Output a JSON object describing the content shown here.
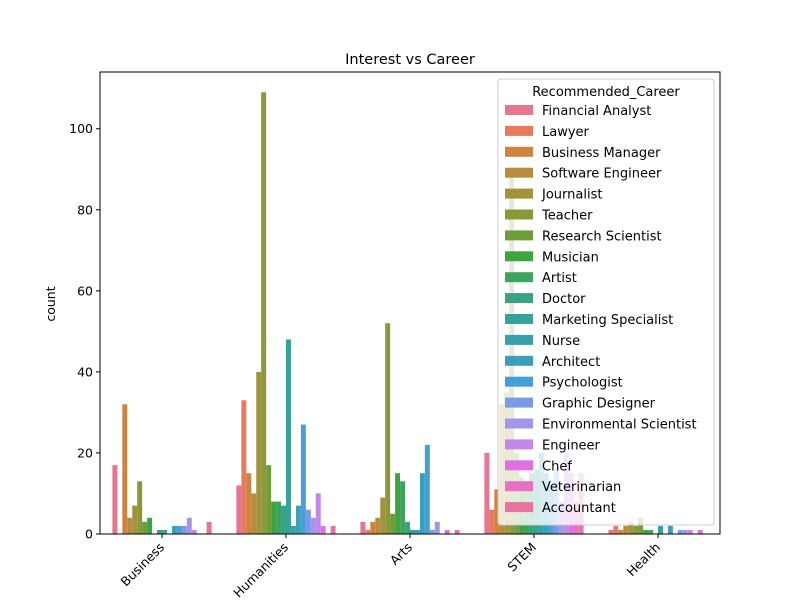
{
  "chart_data": {
    "type": "bar",
    "title": "Interest vs Career",
    "xlabel": "",
    "ylabel": "count",
    "ylim": [
      0,
      114
    ],
    "yticks": [
      0,
      20,
      40,
      60,
      80,
      100
    ],
    "categories": [
      "Business",
      "Humanities",
      "Arts",
      "STEM",
      "Health"
    ],
    "legend_title": "Recommended_Career",
    "legend_position": "top-right",
    "series": [
      {
        "name": "Financial Analyst",
        "color": "#e7758f",
        "values": [
          17,
          12,
          3,
          20,
          1
        ]
      },
      {
        "name": "Lawyer",
        "color": "#e97a5e",
        "values": [
          0,
          33,
          1,
          6,
          2
        ]
      },
      {
        "name": "Business Manager",
        "color": "#cc843f",
        "values": [
          32,
          15,
          3,
          11,
          1
        ]
      },
      {
        "name": "Software Engineer",
        "color": "#b88c40",
        "values": [
          4,
          10,
          4,
          32,
          2
        ]
      },
      {
        "name": "Journalist",
        "color": "#a1923c",
        "values": [
          7,
          40,
          9,
          35,
          3
        ]
      },
      {
        "name": "Teacher",
        "color": "#8c9838",
        "values": [
          13,
          109,
          52,
          90,
          2
        ]
      },
      {
        "name": "Research Scientist",
        "color": "#6e9e38",
        "values": [
          3,
          17,
          5,
          20,
          4
        ]
      },
      {
        "name": "Musician",
        "color": "#3ca540",
        "values": [
          4,
          8,
          15,
          14,
          1
        ]
      },
      {
        "name": "Artist",
        "color": "#3da460",
        "values": [
          0,
          8,
          13,
          12,
          1
        ]
      },
      {
        "name": "Doctor",
        "color": "#3ba283",
        "values": [
          1,
          7,
          3,
          15,
          0
        ]
      },
      {
        "name": "Marketing Specialist",
        "color": "#35a39a",
        "values": [
          1,
          48,
          1,
          16,
          2
        ]
      },
      {
        "name": "Nurse",
        "color": "#38a0ab",
        "values": [
          0,
          2,
          1,
          20,
          0
        ]
      },
      {
        "name": "Architect",
        "color": "#3b9fbc",
        "values": [
          2,
          7,
          15,
          15,
          2
        ]
      },
      {
        "name": "Psychologist",
        "color": "#45a0d8",
        "values": [
          2,
          27,
          22,
          12,
          0
        ]
      },
      {
        "name": "Graphic Designer",
        "color": "#7a9ae8",
        "values": [
          2,
          6,
          1,
          16,
          1
        ]
      },
      {
        "name": "Environmental Scientist",
        "color": "#a295ea",
        "values": [
          4,
          4,
          3,
          8,
          1
        ]
      },
      {
        "name": "Engineer",
        "color": "#c486e8",
        "values": [
          1,
          10,
          0,
          20,
          1
        ]
      },
      {
        "name": "Chef",
        "color": "#e070e4",
        "values": [
          0,
          2,
          1,
          15,
          0
        ]
      },
      {
        "name": "Veterinarian",
        "color": "#e571bf",
        "values": [
          0,
          0,
          0,
          8,
          1
        ]
      },
      {
        "name": "Accountant",
        "color": "#e7749f",
        "values": [
          3,
          2,
          1,
          15,
          0
        ]
      }
    ]
  }
}
